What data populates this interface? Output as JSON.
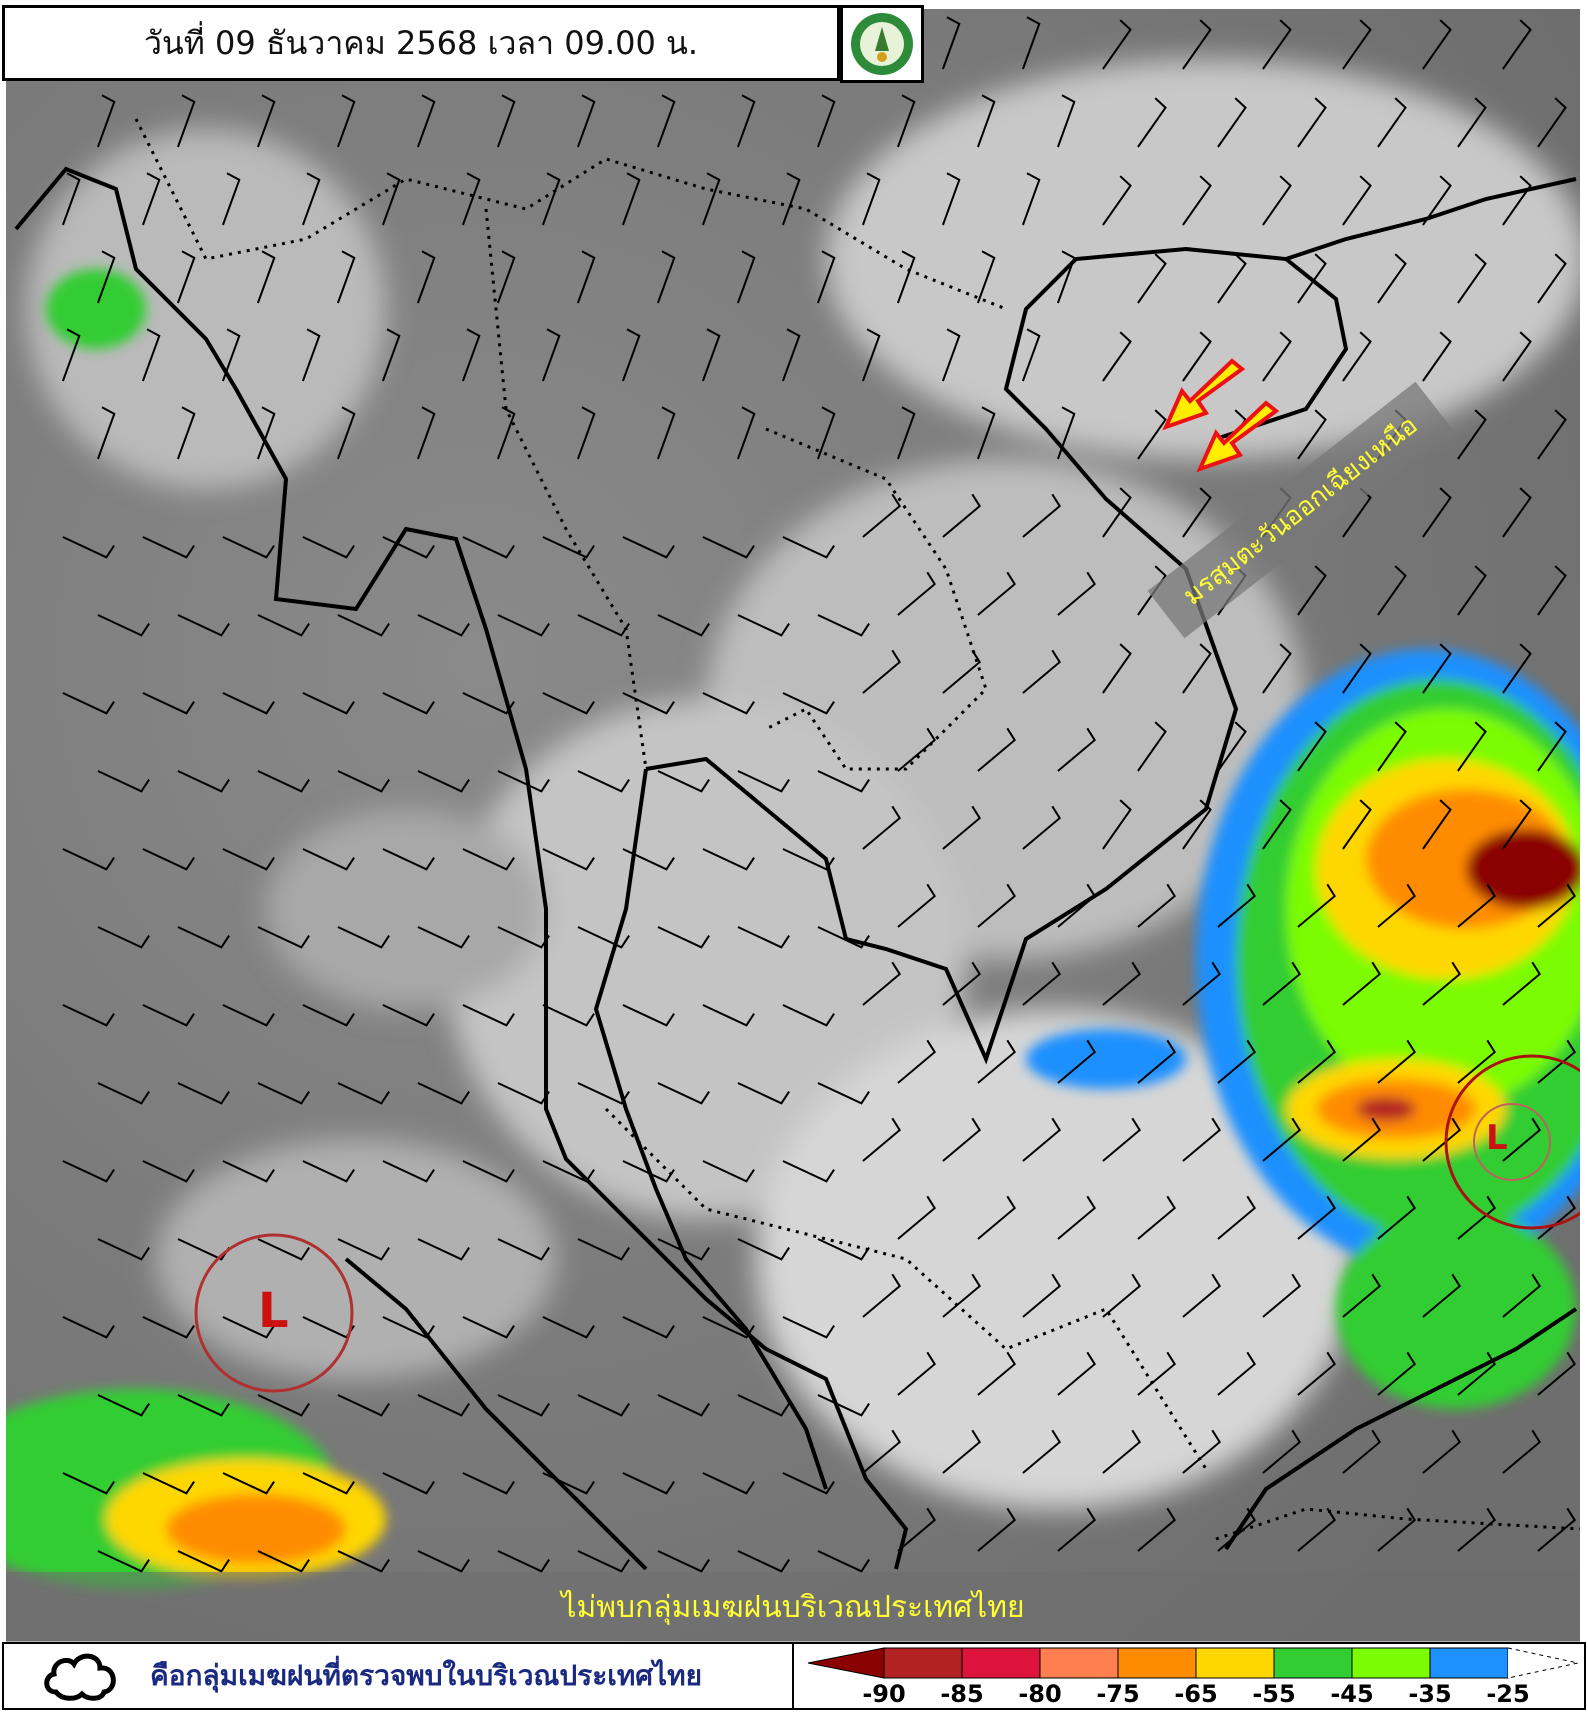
{
  "header": {
    "title": "วันที่ 09 ธันวาคม 2568 เวลา 09.00 น.",
    "logo": "Thai Meteorological Department seal"
  },
  "map": {
    "annotation": "มรสุมตะวันออกเฉียงเหนือ",
    "arrow_color": "#ffee00",
    "arrow_border_color": "#ee1111",
    "low_pressure_markers": [
      {
        "label": "L",
        "location": "Andaman Sea / west of Malay Peninsula"
      },
      {
        "label": "L",
        "location": "South China Sea east of Vietnam"
      }
    ],
    "banner": "ไม่พบกลุ่มเมฆฝนบริเวณประเทศไทย"
  },
  "legend": {
    "cloud_icon": "cloud-outline-icon",
    "cloud_text": "คือกลุ่มเมฆฝนที่ตรวจพบในบริเวณประเทศไทย",
    "colors": [
      "#8b0000",
      "#b22222",
      "#dc143c",
      "#ff7f50",
      "#ff8c00",
      "#ffd700",
      "#32cd32",
      "#7cfc00",
      "#1e90ff",
      "#ffffff"
    ],
    "ticks": [
      "-90",
      "-85",
      "-80",
      "-75",
      "-65",
      "-55",
      "-45",
      "-35",
      "-25"
    ]
  }
}
